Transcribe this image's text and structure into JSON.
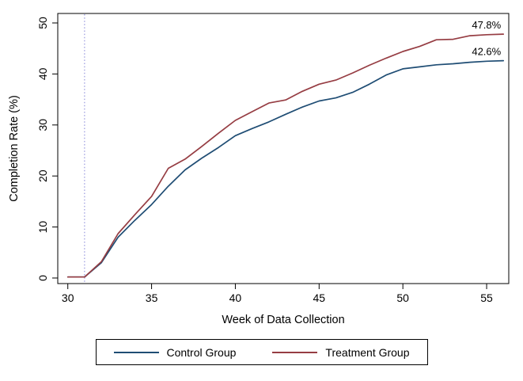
{
  "chart_data": {
    "type": "line",
    "x": [
      30,
      31,
      32,
      33,
      34,
      35,
      36,
      37,
      38,
      39,
      40,
      41,
      42,
      43,
      44,
      45,
      46,
      47,
      48,
      49,
      50,
      51,
      52,
      53,
      54,
      55,
      56
    ],
    "series": [
      {
        "name": "Control Group",
        "color": "#1f4d74",
        "end_label": "42.6%",
        "values": [
          0.2,
          0.2,
          3.0,
          8.0,
          11.3,
          14.4,
          18.0,
          21.2,
          23.5,
          25.6,
          27.9,
          29.3,
          30.6,
          32.1,
          33.5,
          34.7,
          35.3,
          36.4,
          38.0,
          39.8,
          41.0,
          41.4,
          41.8,
          42.0,
          42.3,
          42.5,
          42.6
        ]
      },
      {
        "name": "Treatment Group",
        "color": "#963d43",
        "end_label": "47.8%",
        "values": [
          0.2,
          0.2,
          3.2,
          8.7,
          12.4,
          16.0,
          21.5,
          23.3,
          25.8,
          28.4,
          30.9,
          32.6,
          34.3,
          34.9,
          36.6,
          38.0,
          38.8,
          40.2,
          41.7,
          43.1,
          44.4,
          45.4,
          46.7,
          46.8,
          47.5,
          47.7,
          47.8
        ]
      }
    ],
    "xlabel": "Week of Data Collection",
    "ylabel": "Completion Rate (%)",
    "xticks": [
      30,
      35,
      40,
      45,
      50,
      55
    ],
    "yticks": [
      0,
      10,
      20,
      30,
      40,
      50
    ],
    "xlim": [
      29.4,
      56.32
    ],
    "ylim": [
      -1.09,
      51.86
    ],
    "grid": false,
    "legend_position": "bottom",
    "axis_color": "#000000",
    "reference_line": {
      "x": 31,
      "style": "dotted",
      "color": "#8282d6"
    }
  }
}
